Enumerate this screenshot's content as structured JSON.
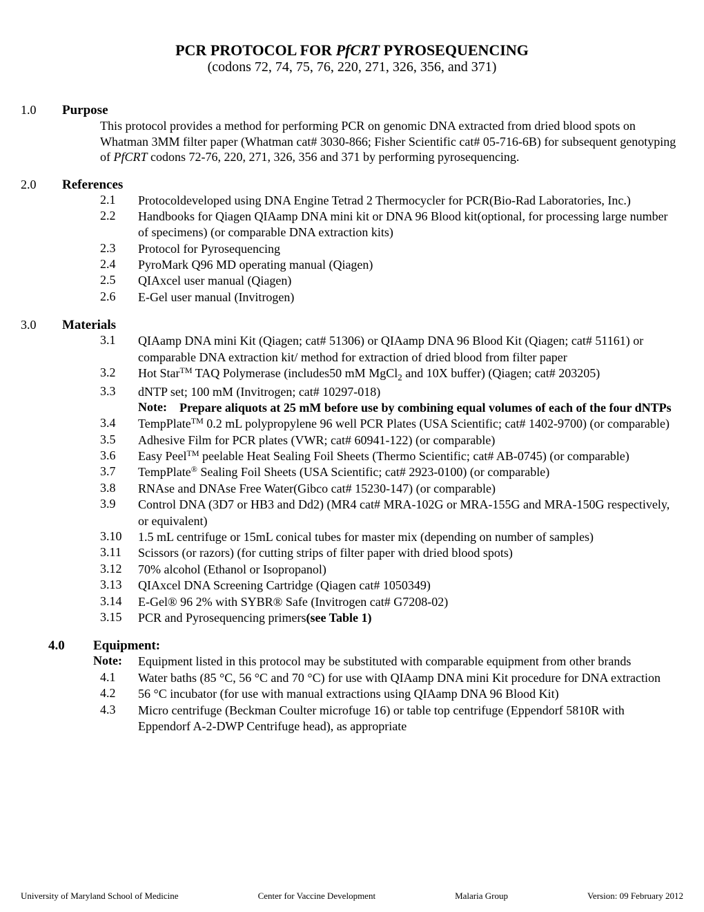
{
  "title_pre": "PCR PROTOCOL FOR ",
  "title_ital": "PfCRT",
  "title_post": " PYROSEQUENCING",
  "subtitle": "(codons 72, 74, 75, 76, 220, 271, 326, 356, and 371)",
  "s1": {
    "num": "1.0",
    "head": "Purpose",
    "body_pre": "This protocol provides a method for performing PCR on genomic DNA extracted from dried blood spots on Whatman 3MM filter paper (Whatman cat# 3030-866; Fisher Scientific  cat# 05-716-6B) for subsequent genotyping of ",
    "body_ital": "PfCRT",
    "body_post": " codons 72-76, 220, 271, 326, 356 and 371 by performing pyrosequencing."
  },
  "s2": {
    "num": "2.0",
    "head": "References",
    "items": [
      {
        "n": "2.1",
        "t": "Protocoldeveloped using DNA Engine Tetrad 2 Thermocycler for PCR(Bio-Rad Laboratories, Inc.)"
      },
      {
        "n": "2.2",
        "t": "Handbooks for Qiagen QIAamp DNA mini kit or DNA 96 Blood kit(optional, for processing large number of specimens) (or comparable DNA extraction kits)"
      },
      {
        "n": "2.3",
        "t": "Protocol for Pyrosequencing"
      },
      {
        "n": "2.4",
        "t": "PyroMark Q96 MD operating manual (Qiagen)"
      },
      {
        "n": "2.5",
        "t": "QIAxcel user manual (Qiagen)"
      },
      {
        "n": "2.6",
        "t": "E-Gel user manual (Invitrogen)"
      }
    ]
  },
  "s3": {
    "num": "3.0",
    "head": "Materials",
    "i1": {
      "n": "3.1",
      "t": "QIAamp DNA mini Kit (Qiagen; cat# 51306) or QIAamp DNA 96 Blood Kit (Qiagen; cat# 51161) or comparable DNA extraction kit/ method for extraction of dried blood from filter paper"
    },
    "i2": {
      "n": "3.2",
      "pre": "Hot Star",
      "tm": "TM",
      "mid": " TAQ Polymerase (includes50 mM MgCl",
      "sub": "2",
      "post": " and 10X buffer) (Qiagen; cat# 203205)"
    },
    "i3": {
      "n": "3.3",
      "t": "dNTP set; 100 mM (Invitrogen; cat# 10297-018)"
    },
    "note3": {
      "lbl": "Note:",
      "t": "Prepare aliquots at 25 mM before use by combining equal volumes of each of the four dNTPs"
    },
    "i4": {
      "n": "3.4",
      "pre": "TempPlate",
      "tm": "TM",
      "post": " 0.2 mL polypropylene 96 well PCR Plates (USA Scientific; cat# 1402-9700) (or comparable)"
    },
    "i5": {
      "n": "3.5",
      "t": "Adhesive Film for PCR plates (VWR; cat# 60941-122) (or comparable)"
    },
    "i6": {
      "n": "3.6",
      "pre": "Easy Peel",
      "tm": "TM",
      "post": " peelable Heat Sealing Foil Sheets (Thermo Scientific; cat# AB-0745) (or comparable)"
    },
    "i7": {
      "n": "3.7",
      "pre": "TempPlate",
      "reg": "®",
      "post": " Sealing Foil Sheets (USA Scientific; cat# 2923-0100) (or comparable)"
    },
    "i8": {
      "n": "3.8",
      "t": "RNAse and DNAse Free Water(Gibco cat# 15230-147) (or comparable)"
    },
    "i9": {
      "n": "3.9",
      "t": "Control DNA (3D7 or HB3 and Dd2) (MR4 cat# MRA-102G or MRA-155G and MRA-150G respectively, or equivalent)"
    },
    "i10": {
      "n": "3.10",
      "t": "1.5 mL centrifuge or 15mL conical tubes for master mix (depending on number of samples)"
    },
    "i11": {
      "n": "3.11",
      "t": "Scissors (or razors) (for cutting strips of filter paper with dried blood spots)"
    },
    "i12": {
      "n": "3.12",
      "t": "70% alcohol (Ethanol or Isopropanol)"
    },
    "i13": {
      "n": "3.13",
      "t": "QIAxcel DNA Screening Cartridge (Qiagen cat# 1050349)"
    },
    "i14": {
      "n": "3.14",
      "t": "E-Gel® 96 2% with SYBR® Safe (Invitrogen cat# G7208-02)"
    },
    "i15": {
      "n": "3.15",
      "pre": "PCR and Pyrosequencing primers",
      "bold": "(see Table 1)"
    }
  },
  "s4": {
    "num": "4.0",
    "head": "Equipment:",
    "note": {
      "lbl": "Note:",
      "t": "Equipment listed in this protocol may be substituted with comparable equipment from other brands"
    },
    "i1": {
      "n": "4.1",
      "t": "Water baths (85 °C, 56 °C and 70 °C) for use with QIAamp DNA mini Kit procedure for DNA extraction"
    },
    "i2": {
      "n": "4.2",
      "t": "56 °C incubator (for use with manual extractions using QIAamp DNA 96 Blood Kit)"
    },
    "i3": {
      "n": "4.3",
      "t": "Micro centrifuge (Beckman Coulter microfuge 16) or table top centrifuge (Eppendorf 5810R with Eppendorf A-2-DWP Centrifuge head), as appropriate"
    }
  },
  "footer": {
    "a": "University of Maryland School of Medicine",
    "b": "Center for Vaccine Development",
    "c": "Malaria Group",
    "d": "Version: 09 February 2012"
  }
}
